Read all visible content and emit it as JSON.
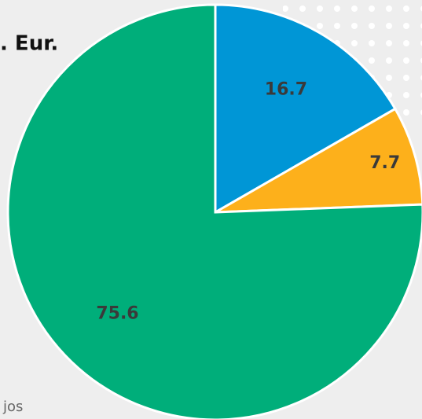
{
  "chart_data": {
    "type": "pie",
    "title": ". Eur.",
    "source": "jos",
    "categories": [
      null,
      null,
      null
    ],
    "values": [
      16.7,
      7.7,
      75.6
    ],
    "colors": [
      "#0096d6",
      "#fdb01b",
      "#00ae7a"
    ]
  }
}
